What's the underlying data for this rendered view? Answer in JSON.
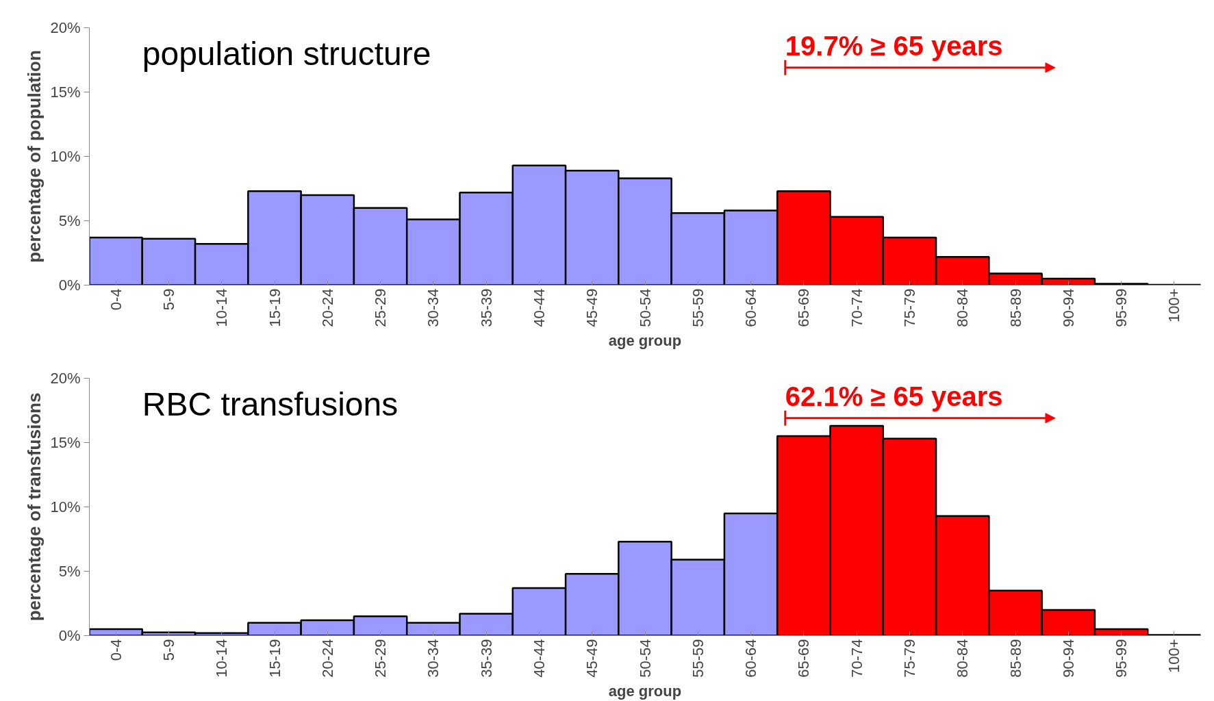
{
  "chart_data": [
    {
      "type": "bar",
      "title": "population structure",
      "xlabel": "age group",
      "ylabel": "percentage of population",
      "categories": [
        "0-4",
        "5-9",
        "10-14",
        "15-19",
        "20-24",
        "25-29",
        "30-34",
        "35-39",
        "40-44",
        "45-49",
        "50-54",
        "55-59",
        "60-64",
        "65-69",
        "70-74",
        "75-79",
        "80-84",
        "85-89",
        "90-94",
        "95-99",
        "100+"
      ],
      "values": [
        3.7,
        3.6,
        3.2,
        7.3,
        7.0,
        6.0,
        5.1,
        7.2,
        9.3,
        8.9,
        8.3,
        5.6,
        5.8,
        7.3,
        5.3,
        3.7,
        2.2,
        0.9,
        0.5,
        0.1,
        0.03
      ],
      "colors": [
        "#9999ff",
        "#9999ff",
        "#9999ff",
        "#9999ff",
        "#9999ff",
        "#9999ff",
        "#9999ff",
        "#9999ff",
        "#9999ff",
        "#9999ff",
        "#9999ff",
        "#9999ff",
        "#9999ff",
        "#ff0000",
        "#ff0000",
        "#ff0000",
        "#ff0000",
        "#ff0000",
        "#ff0000",
        "#ff0000",
        "#ff0000"
      ],
      "ylim": [
        0,
        20
      ],
      "yticks": [
        {
          "value": 0,
          "label": "0%"
        },
        {
          "value": 5,
          "label": "5%"
        },
        {
          "value": 10,
          "label": "10%"
        },
        {
          "value": 15,
          "label": "15%"
        },
        {
          "value": 20,
          "label": "20%"
        }
      ],
      "annotations": [
        "19.7% ≥ 65 years"
      ],
      "grid": false
    },
    {
      "type": "bar",
      "title": "RBC transfusions",
      "xlabel": "age group",
      "ylabel": "percentage of transfusions",
      "categories": [
        "0-4",
        "5-9",
        "10-14",
        "15-19",
        "20-24",
        "25-29",
        "30-34",
        "35-39",
        "40-44",
        "45-49",
        "50-54",
        "55-59",
        "60-64",
        "65-69",
        "70-74",
        "75-79",
        "80-84",
        "85-89",
        "90-94",
        "95-99",
        "100+"
      ],
      "values": [
        0.5,
        0.25,
        0.2,
        1.0,
        1.2,
        1.5,
        1.0,
        1.7,
        3.7,
        4.8,
        7.3,
        5.9,
        9.5,
        15.5,
        16.3,
        15.3,
        9.3,
        3.5,
        2.0,
        0.5,
        0.05
      ],
      "colors": [
        "#9999ff",
        "#9999ff",
        "#9999ff",
        "#9999ff",
        "#9999ff",
        "#9999ff",
        "#9999ff",
        "#9999ff",
        "#9999ff",
        "#9999ff",
        "#9999ff",
        "#9999ff",
        "#9999ff",
        "#ff0000",
        "#ff0000",
        "#ff0000",
        "#ff0000",
        "#ff0000",
        "#ff0000",
        "#ff0000",
        "#ff0000"
      ],
      "ylim": [
        0,
        20
      ],
      "yticks": [
        {
          "value": 0,
          "label": "0%"
        },
        {
          "value": 5,
          "label": "5%"
        },
        {
          "value": 10,
          "label": "10%"
        },
        {
          "value": 15,
          "label": "15%"
        },
        {
          "value": 20,
          "label": "20%"
        }
      ],
      "annotations": [
        "62.1% ≥ 65 years"
      ],
      "grid": false
    }
  ]
}
